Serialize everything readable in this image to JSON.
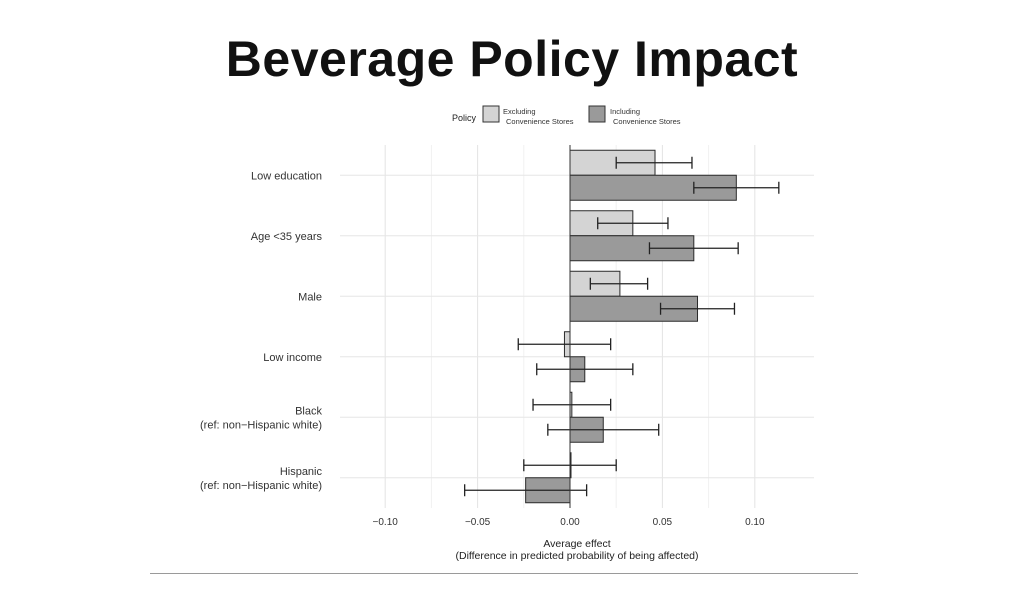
{
  "slide": {
    "title": "Beverage Policy Impact"
  },
  "chart_data": {
    "type": "bar",
    "orientation": "horizontal",
    "title": "",
    "xlabel": "Average effect",
    "xlabel_sub": "(Difference in predicted probability of being affected)",
    "ylabel": "",
    "xlim": [
      -0.125,
      0.133
    ],
    "x_ticks": [
      -0.1,
      -0.05,
      0.0,
      0.05,
      0.1
    ],
    "x_tick_labels": [
      "−0.10",
      "−0.05",
      "0.00",
      "0.05",
      "0.10"
    ],
    "grid": true,
    "legend": {
      "title": "Policy",
      "placement": "top",
      "entries": [
        "Excluding Convenience Stores",
        "Including Convenience Stores"
      ],
      "entry_lines": [
        [
          "Excluding",
          "Convenience Stores"
        ],
        [
          "Including",
          "Convenience Stores"
        ]
      ]
    },
    "categories": [
      [
        "Low education"
      ],
      [
        "Age <35 years"
      ],
      [
        "Male"
      ],
      [
        "Low income"
      ],
      [
        "Black",
        "(ref: non−Hispanic white)"
      ],
      [
        "Hispanic",
        "(ref: non−Hispanic white)"
      ]
    ],
    "series": [
      {
        "name": "Excluding Convenience Stores",
        "color": "#d4d4d4",
        "values": [
          0.046,
          0.034,
          0.027,
          -0.003,
          0.001,
          0.0
        ],
        "ci_low": [
          0.025,
          0.015,
          0.011,
          -0.028,
          -0.02,
          -0.025
        ],
        "ci_high": [
          0.066,
          0.053,
          0.042,
          0.022,
          0.022,
          0.025
        ]
      },
      {
        "name": "Including Convenience Stores",
        "color": "#9a9a9a",
        "values": [
          0.09,
          0.067,
          0.069,
          0.008,
          0.018,
          -0.024
        ],
        "ci_low": [
          0.067,
          0.043,
          0.049,
          -0.018,
          -0.012,
          -0.057
        ],
        "ci_high": [
          0.113,
          0.091,
          0.089,
          0.034,
          0.048,
          0.009
        ]
      }
    ]
  }
}
